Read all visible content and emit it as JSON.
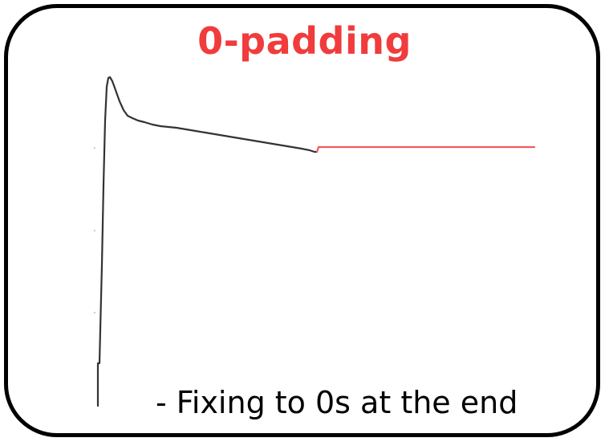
{
  "title": "0-padding",
  "caption": "- Fixing to 0s at the end",
  "colors": {
    "title": "#f03c3c",
    "signal": "#333333",
    "padding": "#f05a5a",
    "border": "#000000"
  }
}
